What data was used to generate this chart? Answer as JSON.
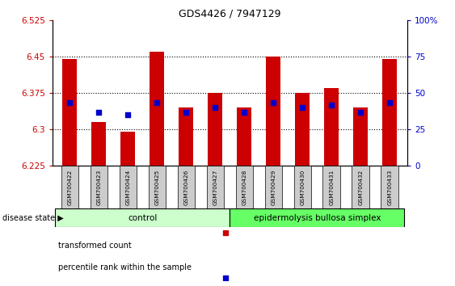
{
  "title": "GDS4426 / 7947129",
  "samples": [
    "GSM700422",
    "GSM700423",
    "GSM700424",
    "GSM700425",
    "GSM700426",
    "GSM700427",
    "GSM700428",
    "GSM700429",
    "GSM700430",
    "GSM700431",
    "GSM700432",
    "GSM700433"
  ],
  "bar_values": [
    6.445,
    6.315,
    6.295,
    6.46,
    6.345,
    6.375,
    6.345,
    6.45,
    6.375,
    6.385,
    6.345,
    6.445
  ],
  "blue_values": [
    6.355,
    6.335,
    6.33,
    6.355,
    6.335,
    6.345,
    6.335,
    6.355,
    6.345,
    6.35,
    6.335,
    6.355
  ],
  "ymin": 6.225,
  "ymax": 6.525,
  "yticks": [
    6.225,
    6.3,
    6.375,
    6.45,
    6.525
  ],
  "ytick_labels": [
    "6.225",
    "6.3",
    "6.375",
    "6.45",
    "6.525"
  ],
  "right_yticks": [
    0,
    25,
    50,
    75,
    100
  ],
  "right_ytick_labels": [
    "0",
    "25",
    "50",
    "75",
    "100%"
  ],
  "bar_color": "#cc0000",
  "blue_color": "#0000cc",
  "left_ycolor": "#cc0000",
  "right_ycolor": "#0000cc",
  "control_color": "#ccffcc",
  "ebs_color": "#66ff66",
  "control_label": "control",
  "ebs_label": "epidermolysis bullosa simplex",
  "disease_state_label": "disease state",
  "legend_bar": "transformed count",
  "legend_pct": "percentile rank within the sample",
  "n_control": 6,
  "n_ebs": 6,
  "bar_width": 0.5,
  "blue_marker_size": 14
}
